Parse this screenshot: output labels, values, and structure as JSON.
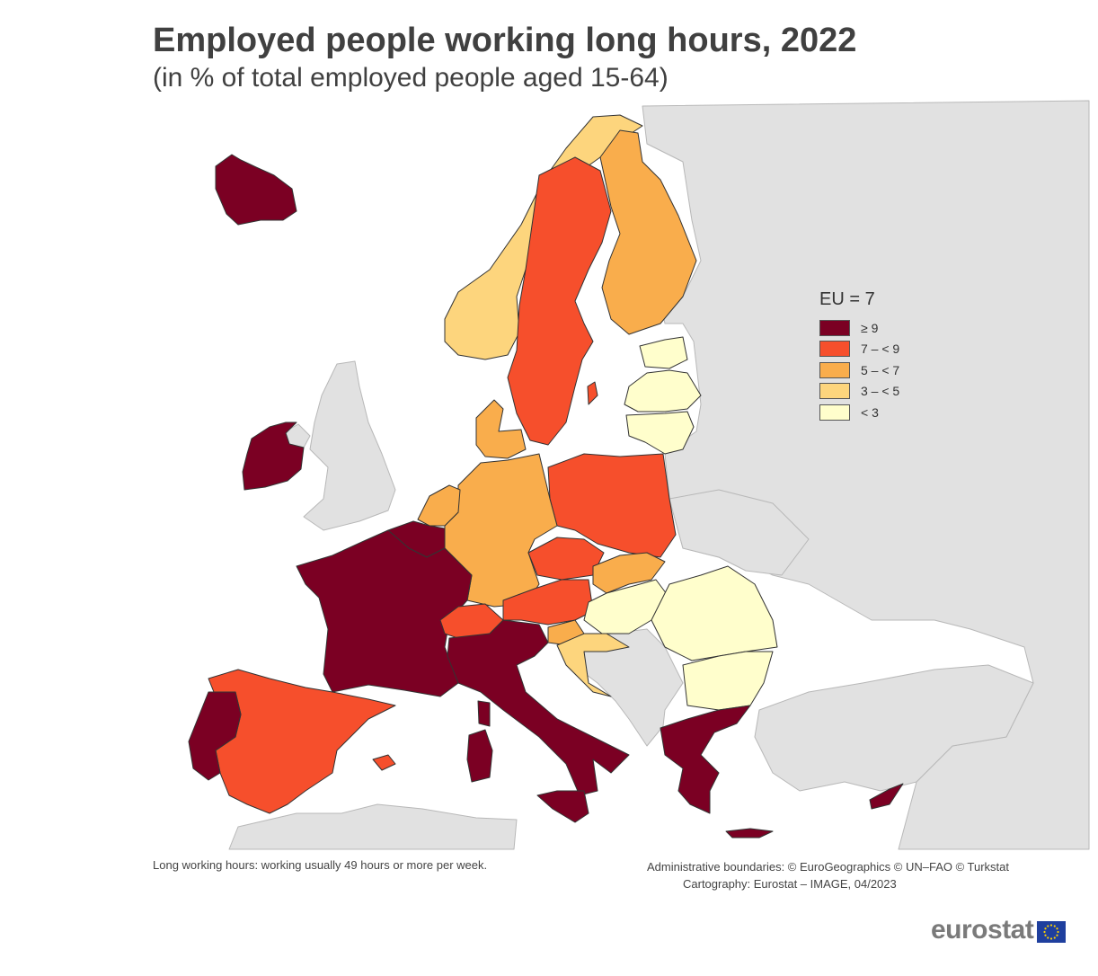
{
  "header": {
    "title": "Employed people working long hours, 2022",
    "subtitle": "(in % of total employed people aged 15-64)"
  },
  "legend": {
    "title": "EU = 7",
    "classes": [
      {
        "label": "≥ 9",
        "color": "#7b0023"
      },
      {
        "label": "7 – < 9",
        "color": "#f64f2c"
      },
      {
        "label": "5 – < 7",
        "color": "#f9ad4c"
      },
      {
        "label": "3 – < 5",
        "color": "#fdd57d"
      },
      {
        "label": "< 3",
        "color": "#fffecc"
      }
    ]
  },
  "map": {
    "colors": {
      "sea": "#ffffff",
      "non_eu_land": "#e1e1e1",
      "border": "#333333"
    },
    "country_classes": {
      "iceland": "≥ 9",
      "ireland": "≥ 9",
      "france": "≥ 9",
      "belgium": "≥ 9",
      "italy": "≥ 9",
      "portugal": "≥ 9",
      "greece": "≥ 9",
      "cyprus": "≥ 9",
      "spain": "7 – < 9",
      "sweden": "7 – < 9",
      "poland": "7 – < 9",
      "czechia": "7 – < 9",
      "austria": "7 – < 9",
      "switzerland": "7 – < 9",
      "germany": "5 – < 7",
      "finland": "5 – < 7",
      "denmark": "5 – < 7",
      "netherlands": "5 – < 7",
      "slovakia": "5 – < 7",
      "norway": "3 – < 5",
      "croatia": "3 – < 5",
      "slovenia": "5 – < 7",
      "estonia": "< 3",
      "latvia": "< 3",
      "lithuania": "< 3",
      "hungary": "< 3",
      "romania": "< 3",
      "bulgaria": "< 3"
    }
  },
  "footer": {
    "note": "Long working hours: working usually 49 hours or more per week.",
    "credits_line1": "Administrative boundaries: © EuroGeographics © UN–FAO © Turkstat",
    "credits_line2": "Cartography: Eurostat – IMAGE, 04/2023",
    "brand": "eurostat"
  }
}
